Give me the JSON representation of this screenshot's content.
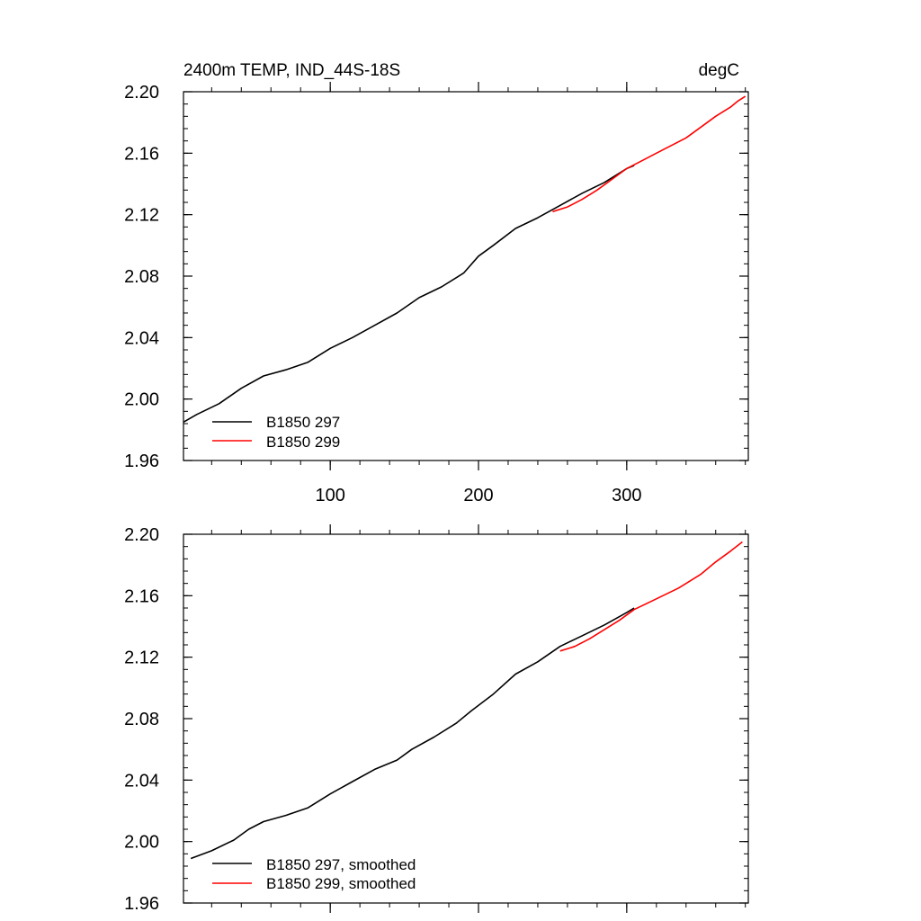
{
  "chart_data": [
    {
      "type": "line",
      "title": "2400m TEMP, IND_44S-18S",
      "units": "degC",
      "xlim": [
        1,
        382
      ],
      "ylim": [
        1.96,
        2.2
      ],
      "x_ticks": [
        100,
        200,
        300
      ],
      "x_tick_labels": [
        "100",
        "200",
        "300"
      ],
      "y_ticks": [
        1.96,
        2.0,
        2.04,
        2.08,
        2.12,
        2.16,
        2.2
      ],
      "y_tick_labels": [
        "1.96",
        "2.00",
        "2.04",
        "2.08",
        "2.12",
        "2.16",
        "2.20"
      ],
      "legend_position": "bottom-left",
      "series": [
        {
          "name": "B1850 297",
          "color": "#000000",
          "x": [
            1,
            10,
            25,
            40,
            55,
            70,
            85,
            100,
            115,
            130,
            145,
            160,
            175,
            190,
            200,
            210,
            225,
            240,
            255,
            270,
            285,
            300,
            305
          ],
          "y": [
            1.985,
            1.99,
            1.997,
            2.007,
            2.015,
            2.019,
            2.024,
            2.033,
            2.04,
            2.048,
            2.056,
            2.066,
            2.073,
            2.082,
            2.093,
            2.1,
            2.111,
            2.118,
            2.126,
            2.134,
            2.141,
            2.15,
            2.152
          ]
        },
        {
          "name": "B1850 299",
          "color": "#ff0000",
          "x": [
            250,
            260,
            270,
            280,
            290,
            300,
            310,
            320,
            330,
            340,
            350,
            360,
            370,
            375,
            380
          ],
          "y": [
            2.122,
            2.125,
            2.13,
            2.136,
            2.143,
            2.15,
            2.155,
            2.16,
            2.165,
            2.17,
            2.177,
            2.184,
            2.19,
            2.194,
            2.197
          ]
        }
      ]
    },
    {
      "type": "line",
      "xlim": [
        1,
        382
      ],
      "ylim": [
        1.96,
        2.2
      ],
      "x_ticks": [
        100,
        200,
        300
      ],
      "y_ticks": [
        1.96,
        2.0,
        2.04,
        2.08,
        2.12,
        2.16,
        2.2
      ],
      "y_tick_labels": [
        "1.96",
        "2.00",
        "2.04",
        "2.08",
        "2.12",
        "2.16",
        "2.20"
      ],
      "legend_position": "bottom-left",
      "series": [
        {
          "name": "B1850 297, smoothed",
          "color": "#000000",
          "x": [
            6,
            20,
            35,
            45,
            55,
            70,
            85,
            100,
            115,
            130,
            145,
            155,
            170,
            185,
            195,
            210,
            225,
            240,
            255,
            270,
            285,
            300,
            305
          ],
          "y": [
            1.989,
            1.994,
            2.001,
            2.008,
            2.013,
            2.017,
            2.022,
            2.031,
            2.039,
            2.047,
            2.053,
            2.06,
            2.068,
            2.077,
            2.085,
            2.096,
            2.109,
            2.117,
            2.127,
            2.134,
            2.141,
            2.149,
            2.152
          ]
        },
        {
          "name": "B1850 299, smoothed",
          "color": "#ff0000",
          "x": [
            255,
            265,
            275,
            285,
            295,
            305,
            320,
            335,
            350,
            360,
            370,
            378
          ],
          "y": [
            2.124,
            2.127,
            2.132,
            2.138,
            2.144,
            2.151,
            2.158,
            2.165,
            2.174,
            2.182,
            2.189,
            2.195
          ]
        }
      ]
    }
  ]
}
